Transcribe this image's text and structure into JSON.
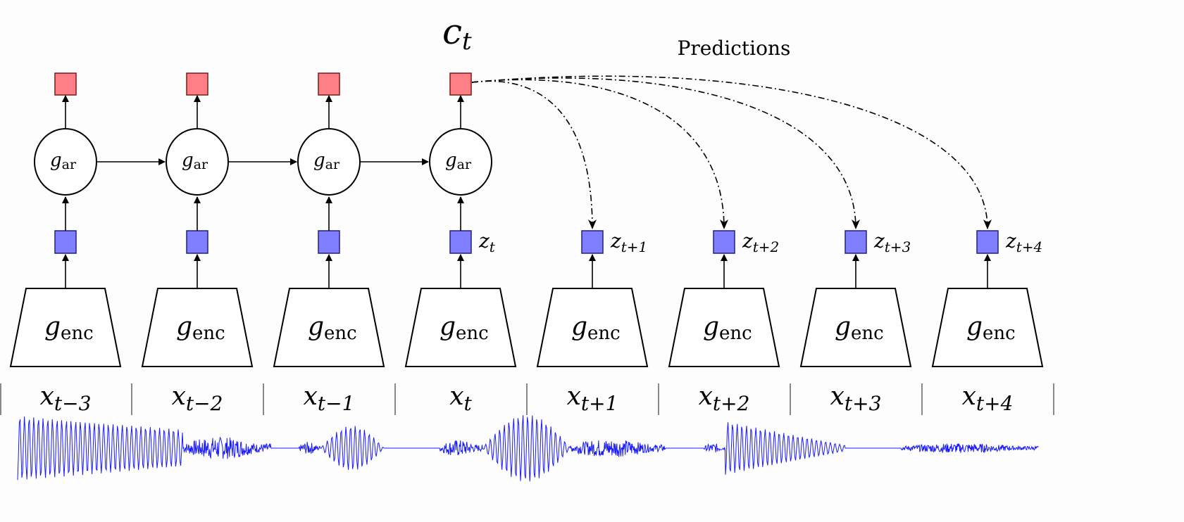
{
  "title": "c",
  "title_sub": "t",
  "predictions_label": "Predictions",
  "colors": {
    "context": "#ff7f86",
    "latent": "#7f7fff",
    "waveform": "#1a1aff",
    "stroke": "#000000"
  },
  "ar_label": {
    "main": "g",
    "sub": "ar"
  },
  "enc_label": {
    "main": "g",
    "sub": "enc"
  },
  "columns": [
    {
      "x_main": "x",
      "x_sub": "t−3",
      "has_ar": true,
      "z_main": "",
      "z_sub": ""
    },
    {
      "x_main": "x",
      "x_sub": "t−2",
      "has_ar": true,
      "z_main": "",
      "z_sub": ""
    },
    {
      "x_main": "x",
      "x_sub": "t−1",
      "has_ar": true,
      "z_main": "",
      "z_sub": ""
    },
    {
      "x_main": "x",
      "x_sub": "t",
      "has_ar": true,
      "z_main": "z",
      "z_sub": "t"
    },
    {
      "x_main": "x",
      "x_sub": "t+1",
      "has_ar": false,
      "z_main": "z",
      "z_sub": "t+1"
    },
    {
      "x_main": "x",
      "x_sub": "t+2",
      "has_ar": false,
      "z_main": "z",
      "z_sub": "t+2"
    },
    {
      "x_main": "x",
      "x_sub": "t+3",
      "has_ar": false,
      "z_main": "z",
      "z_sub": "t+3"
    },
    {
      "x_main": "x",
      "x_sub": "t+4",
      "has_ar": false,
      "z_main": "z",
      "z_sub": "t+4"
    }
  ]
}
